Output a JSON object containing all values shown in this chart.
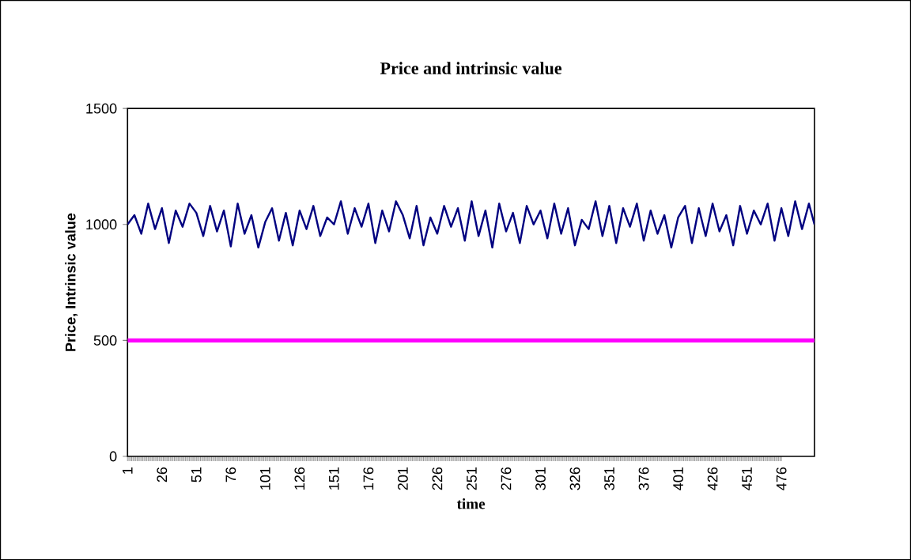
{
  "chart_data": {
    "type": "line",
    "title": "Price and intrinsic value",
    "xlabel": "time",
    "ylabel": "Price, Intrinsic value",
    "x": [
      1,
      6,
      11,
      16,
      21,
      26,
      31,
      36,
      41,
      46,
      51,
      56,
      61,
      66,
      71,
      76,
      81,
      86,
      91,
      96,
      101,
      106,
      111,
      116,
      121,
      126,
      131,
      136,
      141,
      146,
      151,
      156,
      161,
      166,
      171,
      176,
      181,
      186,
      191,
      196,
      201,
      206,
      211,
      216,
      221,
      226,
      231,
      236,
      241,
      246,
      251,
      256,
      261,
      266,
      271,
      276,
      281,
      286,
      291,
      296,
      301,
      306,
      311,
      316,
      321,
      326,
      331,
      336,
      341,
      346,
      351,
      356,
      361,
      366,
      371,
      376,
      381,
      386,
      391,
      396,
      401,
      406,
      411,
      416,
      421,
      426,
      431,
      436,
      441,
      446,
      451,
      456,
      461,
      466,
      471,
      476,
      481,
      486,
      491,
      496,
      500
    ],
    "series": [
      {
        "color": "#000080",
        "values": [
          1000,
          1040,
          960,
          1090,
          980,
          1070,
          920,
          1060,
          990,
          1090,
          1050,
          950,
          1080,
          970,
          1060,
          905,
          1090,
          960,
          1040,
          900,
          1010,
          1070,
          930,
          1050,
          910,
          1060,
          980,
          1080,
          950,
          1030,
          1000,
          1100,
          960,
          1070,
          990,
          1090,
          920,
          1060,
          970,
          1100,
          1040,
          940,
          1080,
          910,
          1030,
          960,
          1080,
          990,
          1070,
          930,
          1100,
          950,
          1060,
          900,
          1090,
          970,
          1050,
          920,
          1080,
          1000,
          1060,
          940,
          1090,
          960,
          1070,
          910,
          1020,
          980,
          1100,
          950,
          1080,
          920,
          1070,
          990,
          1090,
          930,
          1060,
          960,
          1040,
          900,
          1030,
          1080,
          920,
          1070,
          950,
          1090,
          970,
          1040,
          910,
          1080,
          960,
          1060,
          1000,
          1090,
          930,
          1070,
          950,
          1100,
          980,
          1090,
          1000
        ]
      },
      {
        "color": "#ff00ff",
        "x": [
          1,
          500
        ],
        "values": [
          500,
          500
        ]
      }
    ],
    "xlim": [
      1,
      500
    ],
    "xticks": [
      1,
      26,
      51,
      76,
      101,
      126,
      151,
      176,
      201,
      226,
      251,
      276,
      301,
      326,
      351,
      376,
      401,
      426,
      451,
      476
    ],
    "ylim": [
      0,
      1500
    ],
    "yticks": [
      0,
      500,
      1000,
      1500
    ]
  }
}
